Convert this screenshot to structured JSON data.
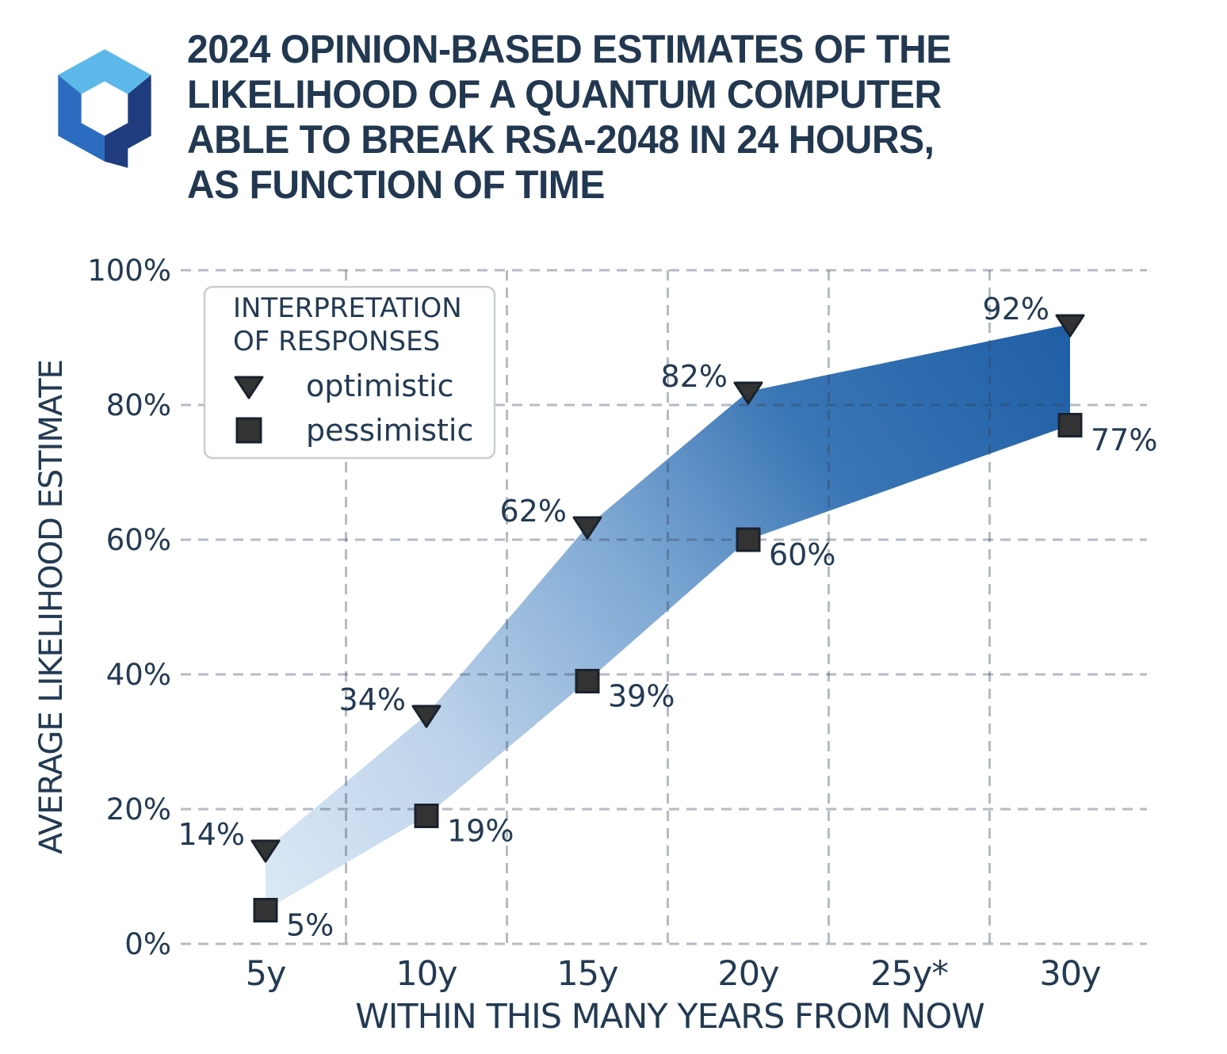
{
  "logo": {
    "name": "hexagon-q-logo",
    "top_color": "#5db8ea",
    "left_color": "#2b6cc1",
    "right_color": "#1e3c7e"
  },
  "chart_data": {
    "type": "area",
    "title_lines": [
      "2024 OPINION-BASED ESTIMATES OF THE",
      "LIKELIHOOD OF A QUANTUM COMPUTER",
      "ABLE TO BREAK RSA-2048 IN 24 HOURS,",
      "AS FUNCTION OF TIME"
    ],
    "title": "2024 opinion-based estimates of the likelihood of a quantum computer able to break RSA-2048 in 24 hours, as function of time",
    "x_categories": [
      "5y",
      "10y",
      "15y",
      "20y",
      "25y*",
      "30y"
    ],
    "series": [
      {
        "name": "optimistic",
        "marker": "triangle-down",
        "values": [
          14,
          34,
          62,
          82,
          null,
          92
        ],
        "label_side": "left"
      },
      {
        "name": "pessimistic",
        "marker": "square",
        "values": [
          5,
          19,
          39,
          60,
          null,
          77
        ],
        "label_side": "right"
      }
    ],
    "value_label_format": "{}%",
    "xlabel": "WITHIN THIS MANY YEARS FROM NOW",
    "ylabel": "AVERAGE LIKELIHOOD ESTIMATE",
    "ylim": [
      0,
      100
    ],
    "ytick_step": 20,
    "ytick_labels": [
      "0%",
      "20%",
      "40%",
      "60%",
      "80%",
      "100%"
    ],
    "grid": "dashed",
    "legend": {
      "title_lines": [
        "INTERPRETATION",
        "OF RESPONSES"
      ],
      "items": [
        "optimistic",
        "pessimistic"
      ],
      "position": "upper-left"
    },
    "band_gradient": {
      "direction": "bottomleft-to-topright",
      "stops": [
        "#dce9f6",
        "#bcd2ea",
        "#7fa9d4",
        "#3a76b5",
        "#1f5ea6"
      ]
    },
    "marker_color": "#333333",
    "marker_edge_color": "#1a222c",
    "text_color": "#233a52",
    "grid_color": "rgba(47,60,82,0.35)"
  }
}
